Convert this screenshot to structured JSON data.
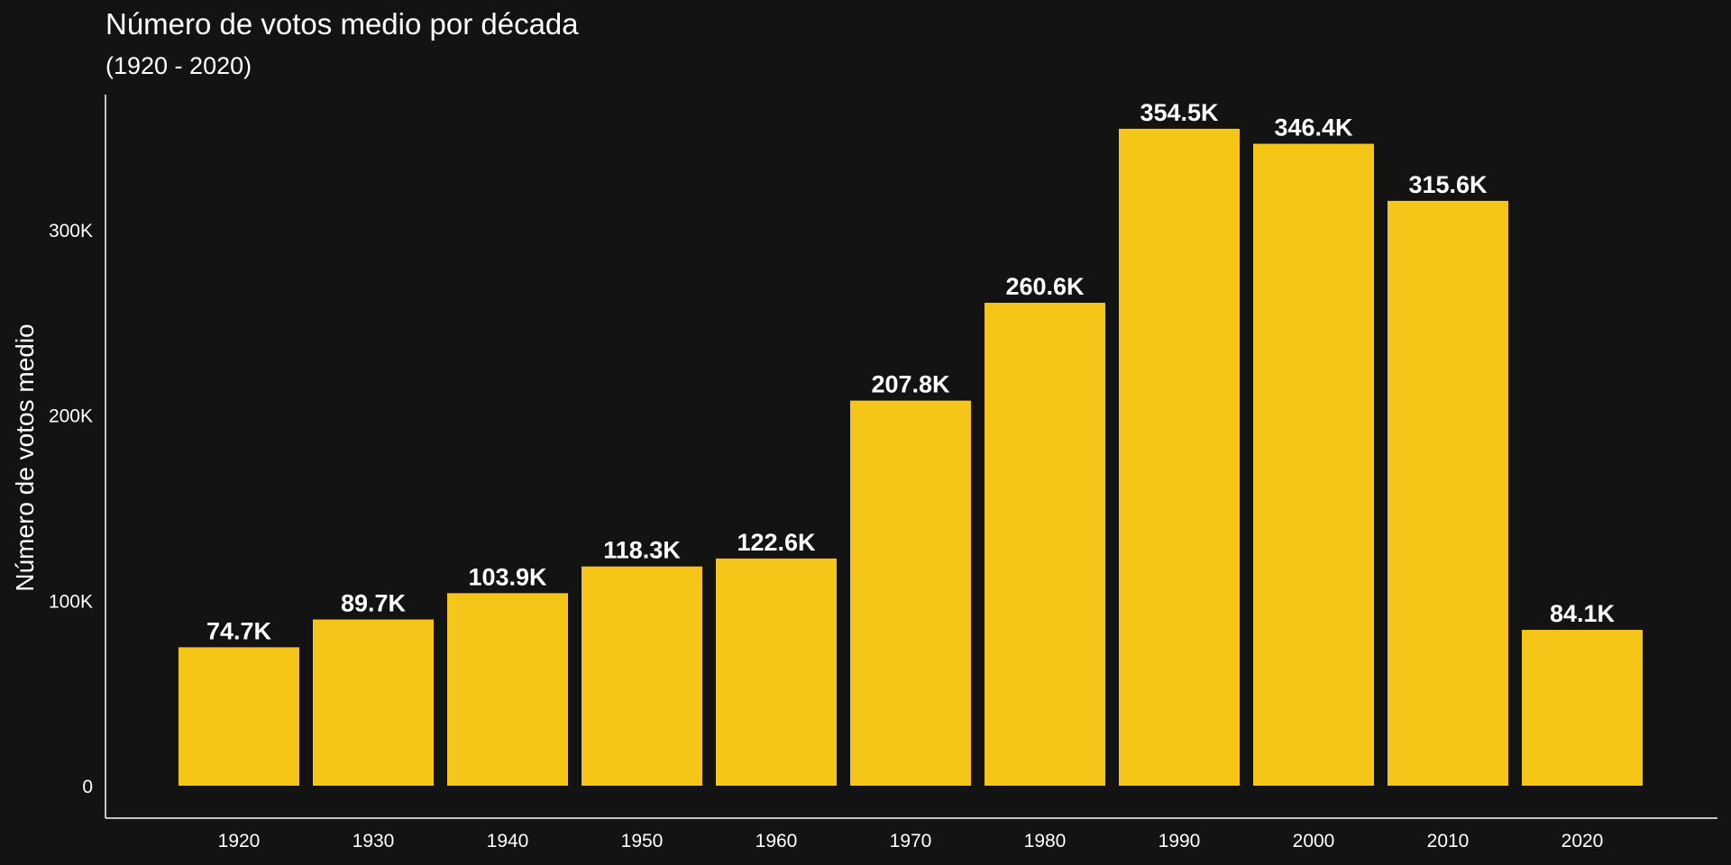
{
  "chart_data": {
    "type": "bar",
    "title": "Número de votos medio por década",
    "subtitle": "(1920 - 2020)",
    "xlabel": "",
    "ylabel": "Número de votos medio",
    "categories": [
      "1920",
      "1930",
      "1940",
      "1950",
      "1960",
      "1970",
      "1980",
      "1990",
      "2000",
      "2010",
      "2020"
    ],
    "values": [
      74700,
      89700,
      103900,
      118300,
      122600,
      207800,
      260600,
      354500,
      346400,
      315600,
      84100
    ],
    "data_labels": [
      "74.7K",
      "89.7K",
      "103.9K",
      "118.3K",
      "122.6K",
      "207.8K",
      "260.6K",
      "354.5K",
      "346.4K",
      "315.6K",
      "84.1K"
    ],
    "yticks": [
      0,
      100000,
      200000,
      300000
    ],
    "ytick_labels": [
      "0",
      "100K",
      "200K",
      "300K"
    ],
    "ylim": [
      -17000,
      372000
    ],
    "grid": false,
    "legend": "none",
    "colors": {
      "background": "#131313",
      "bar": "#F5C518",
      "text": "#ffffff",
      "axis": "#ffffff"
    }
  }
}
